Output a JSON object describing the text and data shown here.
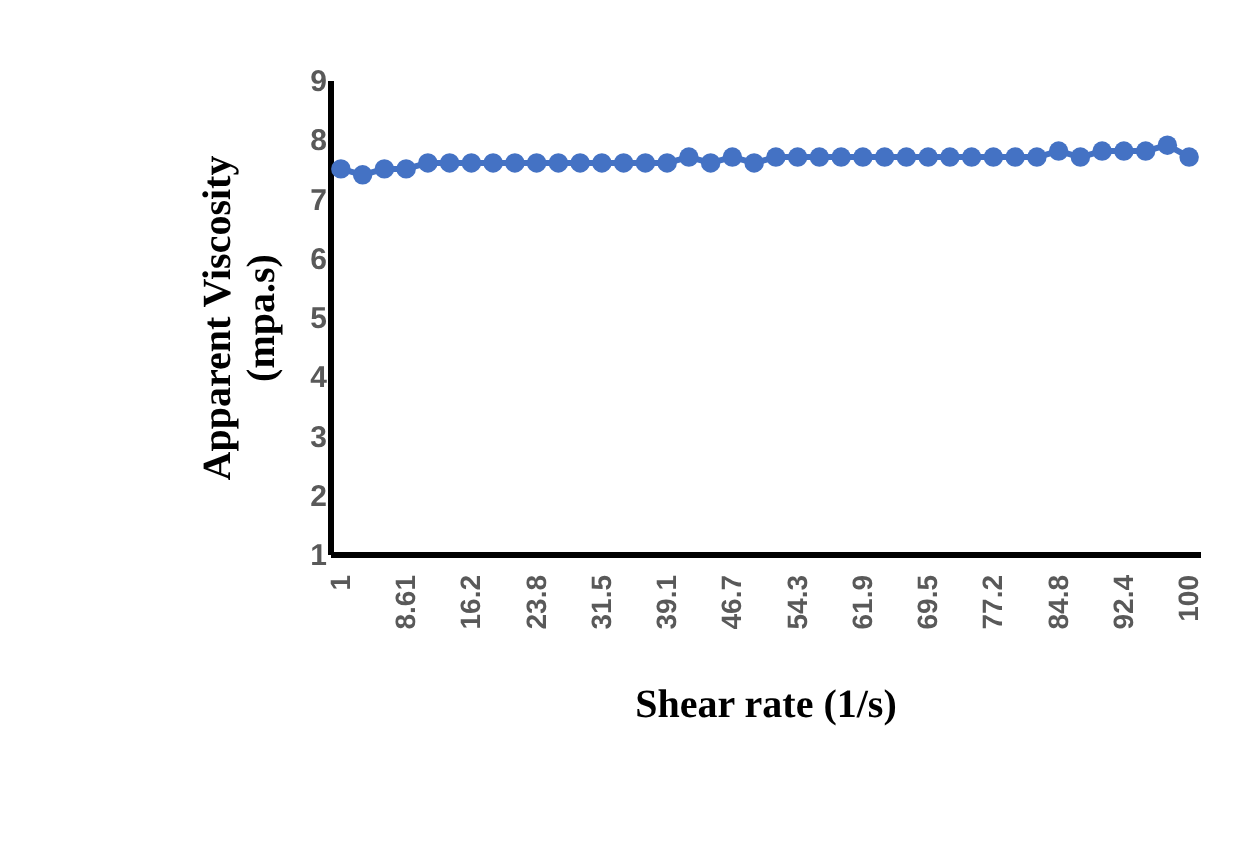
{
  "chart_data": {
    "type": "line",
    "xlabel": "Shear rate (1/s)",
    "ylabel": "Apparent Viscosity\n(mpa.s)",
    "categories": [
      "1",
      null,
      null,
      "8.61",
      null,
      null,
      "16.2",
      null,
      null,
      "23.8",
      null,
      null,
      "31.5",
      null,
      null,
      "39.1",
      null,
      null,
      "46.7",
      null,
      null,
      "54.3",
      null,
      null,
      "61.9",
      null,
      null,
      "69.5",
      null,
      null,
      "77.2",
      null,
      null,
      "84.8",
      null,
      null,
      "92.4",
      null,
      null,
      "100"
    ],
    "series": [
      {
        "color": "#4472c4",
        "values": [
          7.5,
          7.4,
          7.5,
          7.5,
          7.6,
          7.6,
          7.6,
          7.6,
          7.6,
          7.6,
          7.6,
          7.6,
          7.6,
          7.6,
          7.6,
          7.6,
          7.7,
          7.6,
          7.7,
          7.6,
          7.7,
          7.7,
          7.7,
          7.7,
          7.7,
          7.7,
          7.7,
          7.7,
          7.7,
          7.7,
          7.7,
          7.7,
          7.7,
          7.8,
          7.7,
          7.8,
          7.8,
          7.8,
          7.9,
          7.7
        ]
      }
    ],
    "ylim": [
      1,
      9
    ],
    "yticks": [
      1,
      2,
      3,
      4,
      5,
      6,
      7,
      8,
      9
    ],
    "grid": false,
    "legend": false,
    "marker": "circle",
    "line_style": "solid"
  }
}
